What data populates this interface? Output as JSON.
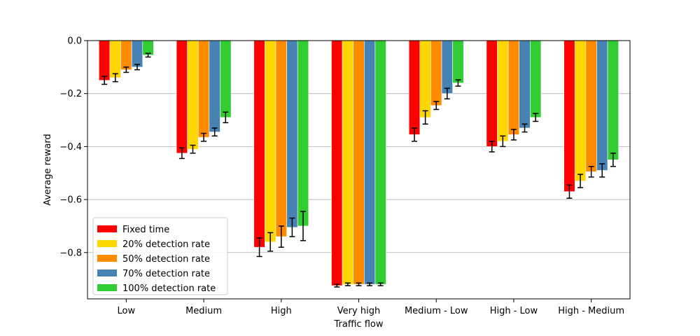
{
  "chart_data": {
    "type": "bar",
    "xlabel": "Traffic flow",
    "ylabel": "Average reward",
    "ylim": [
      -0.975,
      0.0
    ],
    "yticks": [
      0.0,
      -0.2,
      -0.4,
      -0.6,
      -0.8
    ],
    "ytick_labels": [
      "0.0",
      "−0.2",
      "−0.4",
      "−0.6",
      "−0.8"
    ],
    "grid": "horizontal",
    "legend_position": "lower-left",
    "categories": [
      "Low",
      "Medium",
      "High",
      "Very high",
      "Medium - Low",
      "High - Low",
      "High - Medium"
    ],
    "series": [
      {
        "name": "Fixed time",
        "color": "#ff0000",
        "values": [
          -0.15,
          -0.425,
          -0.78,
          -0.925,
          -0.355,
          -0.4,
          -0.57
        ],
        "errors": [
          0.015,
          0.02,
          0.035,
          0.005,
          0.025,
          0.02,
          0.025
        ]
      },
      {
        "name": "20% detection rate",
        "color": "#ffd700",
        "values": [
          -0.14,
          -0.41,
          -0.76,
          -0.92,
          -0.29,
          -0.38,
          -0.53
        ],
        "errors": [
          0.015,
          0.015,
          0.035,
          0.005,
          0.025,
          0.02,
          0.025
        ]
      },
      {
        "name": "50% detection rate",
        "color": "#ff8c00",
        "values": [
          -0.11,
          -0.365,
          -0.74,
          -0.92,
          -0.245,
          -0.355,
          -0.495
        ],
        "errors": [
          0.01,
          0.015,
          0.04,
          0.005,
          0.015,
          0.02,
          0.02
        ]
      },
      {
        "name": "70% detection rate",
        "color": "#4682b4",
        "values": [
          -0.1,
          -0.345,
          -0.705,
          -0.92,
          -0.2,
          -0.33,
          -0.49
        ],
        "errors": [
          0.01,
          0.015,
          0.035,
          0.005,
          0.02,
          0.015,
          0.025
        ]
      },
      {
        "name": "100% detection rate",
        "color": "#32cd32",
        "values": [
          -0.055,
          -0.29,
          -0.7,
          -0.92,
          -0.16,
          -0.29,
          -0.45
        ],
        "errors": [
          0.007,
          0.02,
          0.055,
          0.005,
          0.012,
          0.015,
          0.025
        ]
      }
    ]
  }
}
